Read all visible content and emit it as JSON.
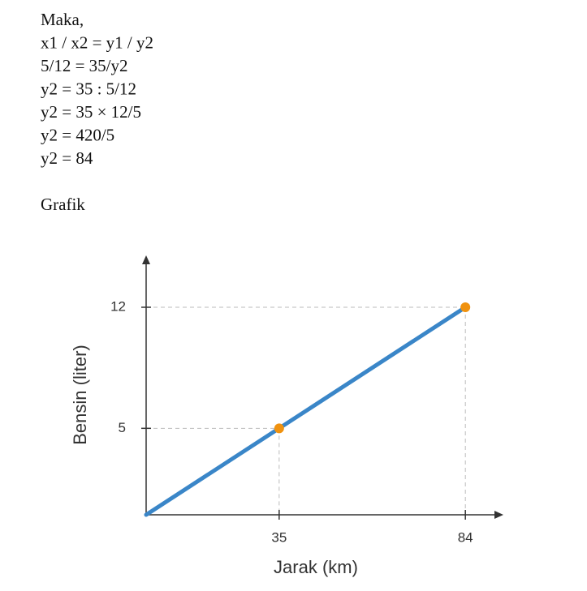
{
  "text": {
    "lines": [
      "Maka,",
      "x1 / x2 = y1 / y2",
      "5/12 = 35/y2",
      "y2 = 35 : 5/12",
      "y2 = 35 × 12/5",
      "y2 = 420/5",
      "y2 = 84"
    ],
    "heading": "Grafik"
  },
  "chart_data": {
    "type": "line",
    "xlabel": "Jarak (km)",
    "ylabel": "Bensin (liter)",
    "x": [
      0,
      35,
      84
    ],
    "values": [
      0,
      5,
      12
    ],
    "color": "#3a86c8",
    "marker_color": "#f0920f",
    "xlim": [
      0,
      94
    ],
    "ylim": [
      0,
      15
    ],
    "xticks": [
      35,
      84
    ],
    "yticks": [
      5,
      12
    ]
  }
}
